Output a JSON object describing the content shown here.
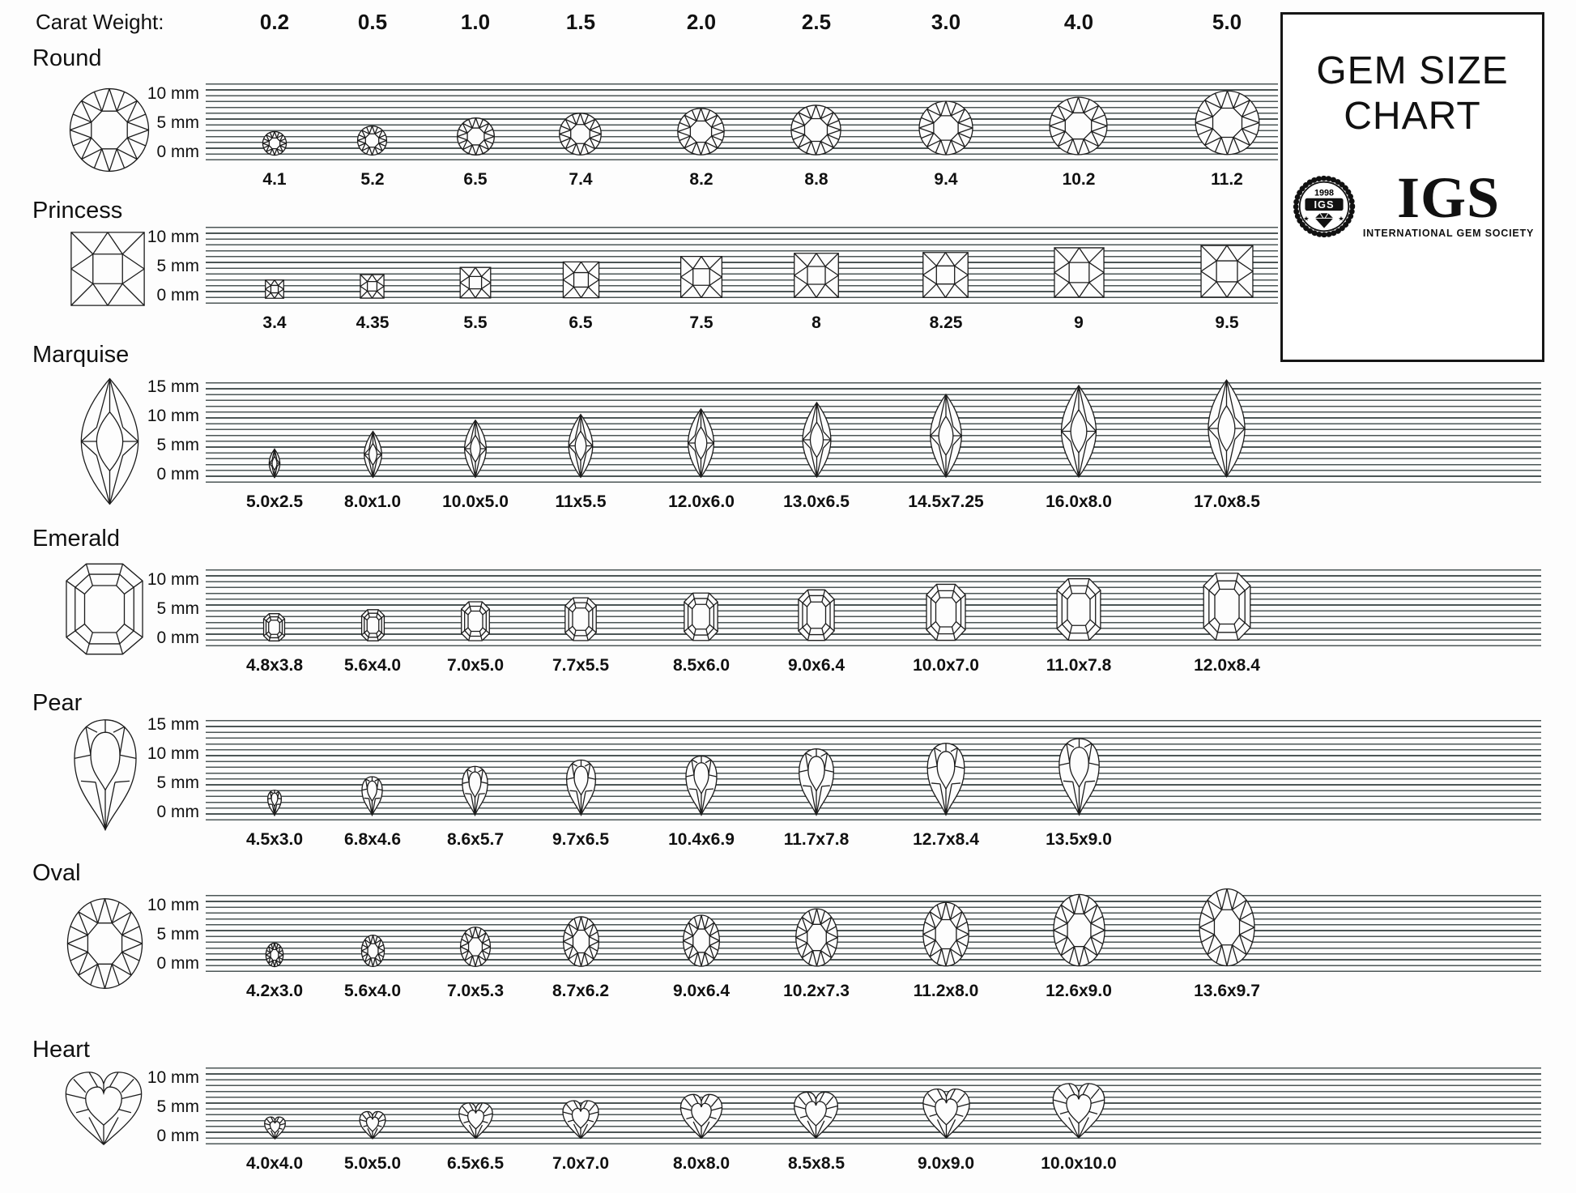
{
  "header": {
    "label": "Carat Weight:",
    "carats": [
      "0.2",
      "0.5",
      "1.0",
      "1.5",
      "2.0",
      "2.5",
      "3.0",
      "4.0",
      "5.0"
    ]
  },
  "title_box": {
    "line1": "GEM SIZE",
    "line2": "CHART",
    "seal_year": "1998",
    "seal_abbr": "IGS",
    "logo_text": "IGS",
    "logo_subtitle": "INTERNATIONAL GEM SOCIETY"
  },
  "colors": {
    "ink": "#111111",
    "rule_line": "#4c5656"
  },
  "chart_data": {
    "type": "table",
    "title": "GEM SIZE CHART",
    "x_axis_label": "Carat Weight",
    "carat_columns": [
      0.2,
      0.5,
      1.0,
      1.5,
      2.0,
      2.5,
      3.0,
      4.0,
      5.0
    ],
    "size_units": "mm (length x width)",
    "rows": [
      {
        "shape": "Round",
        "scale_labels": [
          "10 mm",
          "5 mm",
          "0 mm"
        ],
        "sizes_mm": [
          "4.1",
          "5.2",
          "6.5",
          "7.4",
          "8.2",
          "8.8",
          "9.4",
          "10.2",
          "11.2"
        ]
      },
      {
        "shape": "Princess",
        "scale_labels": [
          "10 mm",
          "5 mm",
          "0 mm"
        ],
        "sizes_mm": [
          "3.4",
          "4.35",
          "5.5",
          "6.5",
          "7.5",
          "8",
          "8.25",
          "9",
          "9.5"
        ]
      },
      {
        "shape": "Marquise",
        "scale_labels": [
          "15 mm",
          "10 mm",
          "5 mm",
          "0 mm"
        ],
        "sizes_mm": [
          "5.0x2.5",
          "8.0x1.0",
          "10.0x5.0",
          "11x5.5",
          "12.0x6.0",
          "13.0x6.5",
          "14.5x7.25",
          "16.0x8.0",
          "17.0x8.5"
        ]
      },
      {
        "shape": "Emerald",
        "scale_labels": [
          "10 mm",
          "5 mm",
          "0 mm"
        ],
        "sizes_mm": [
          "4.8x3.8",
          "5.6x4.0",
          "7.0x5.0",
          "7.7x5.5",
          "8.5x6.0",
          "9.0x6.4",
          "10.0x7.0",
          "11.0x7.8",
          "12.0x8.4"
        ]
      },
      {
        "shape": "Pear",
        "scale_labels": [
          "15 mm",
          "10 mm",
          "5 mm",
          "0 mm"
        ],
        "sizes_mm": [
          "4.5x3.0",
          "6.8x4.6",
          "8.6x5.7",
          "9.7x6.5",
          "10.4x6.9",
          "11.7x7.8",
          "12.7x8.4",
          "13.5x9.0"
        ]
      },
      {
        "shape": "Oval",
        "scale_labels": [
          "10 mm",
          "5 mm",
          "0 mm"
        ],
        "sizes_mm": [
          "4.2x3.0",
          "5.6x4.0",
          "7.0x5.3",
          "8.7x6.2",
          "9.0x6.4",
          "10.2x7.3",
          "11.2x8.0",
          "12.6x9.0",
          "13.6x9.7"
        ]
      },
      {
        "shape": "Heart",
        "scale_labels": [
          "10 mm",
          "5 mm",
          "0 mm"
        ],
        "sizes_mm": [
          "4.0x4.0",
          "5.0x5.0",
          "6.5x6.5",
          "7.0x7.0",
          "8.0x8.0",
          "8.5x8.5",
          "9.0x9.0",
          "10.0x10.0"
        ]
      }
    ]
  }
}
